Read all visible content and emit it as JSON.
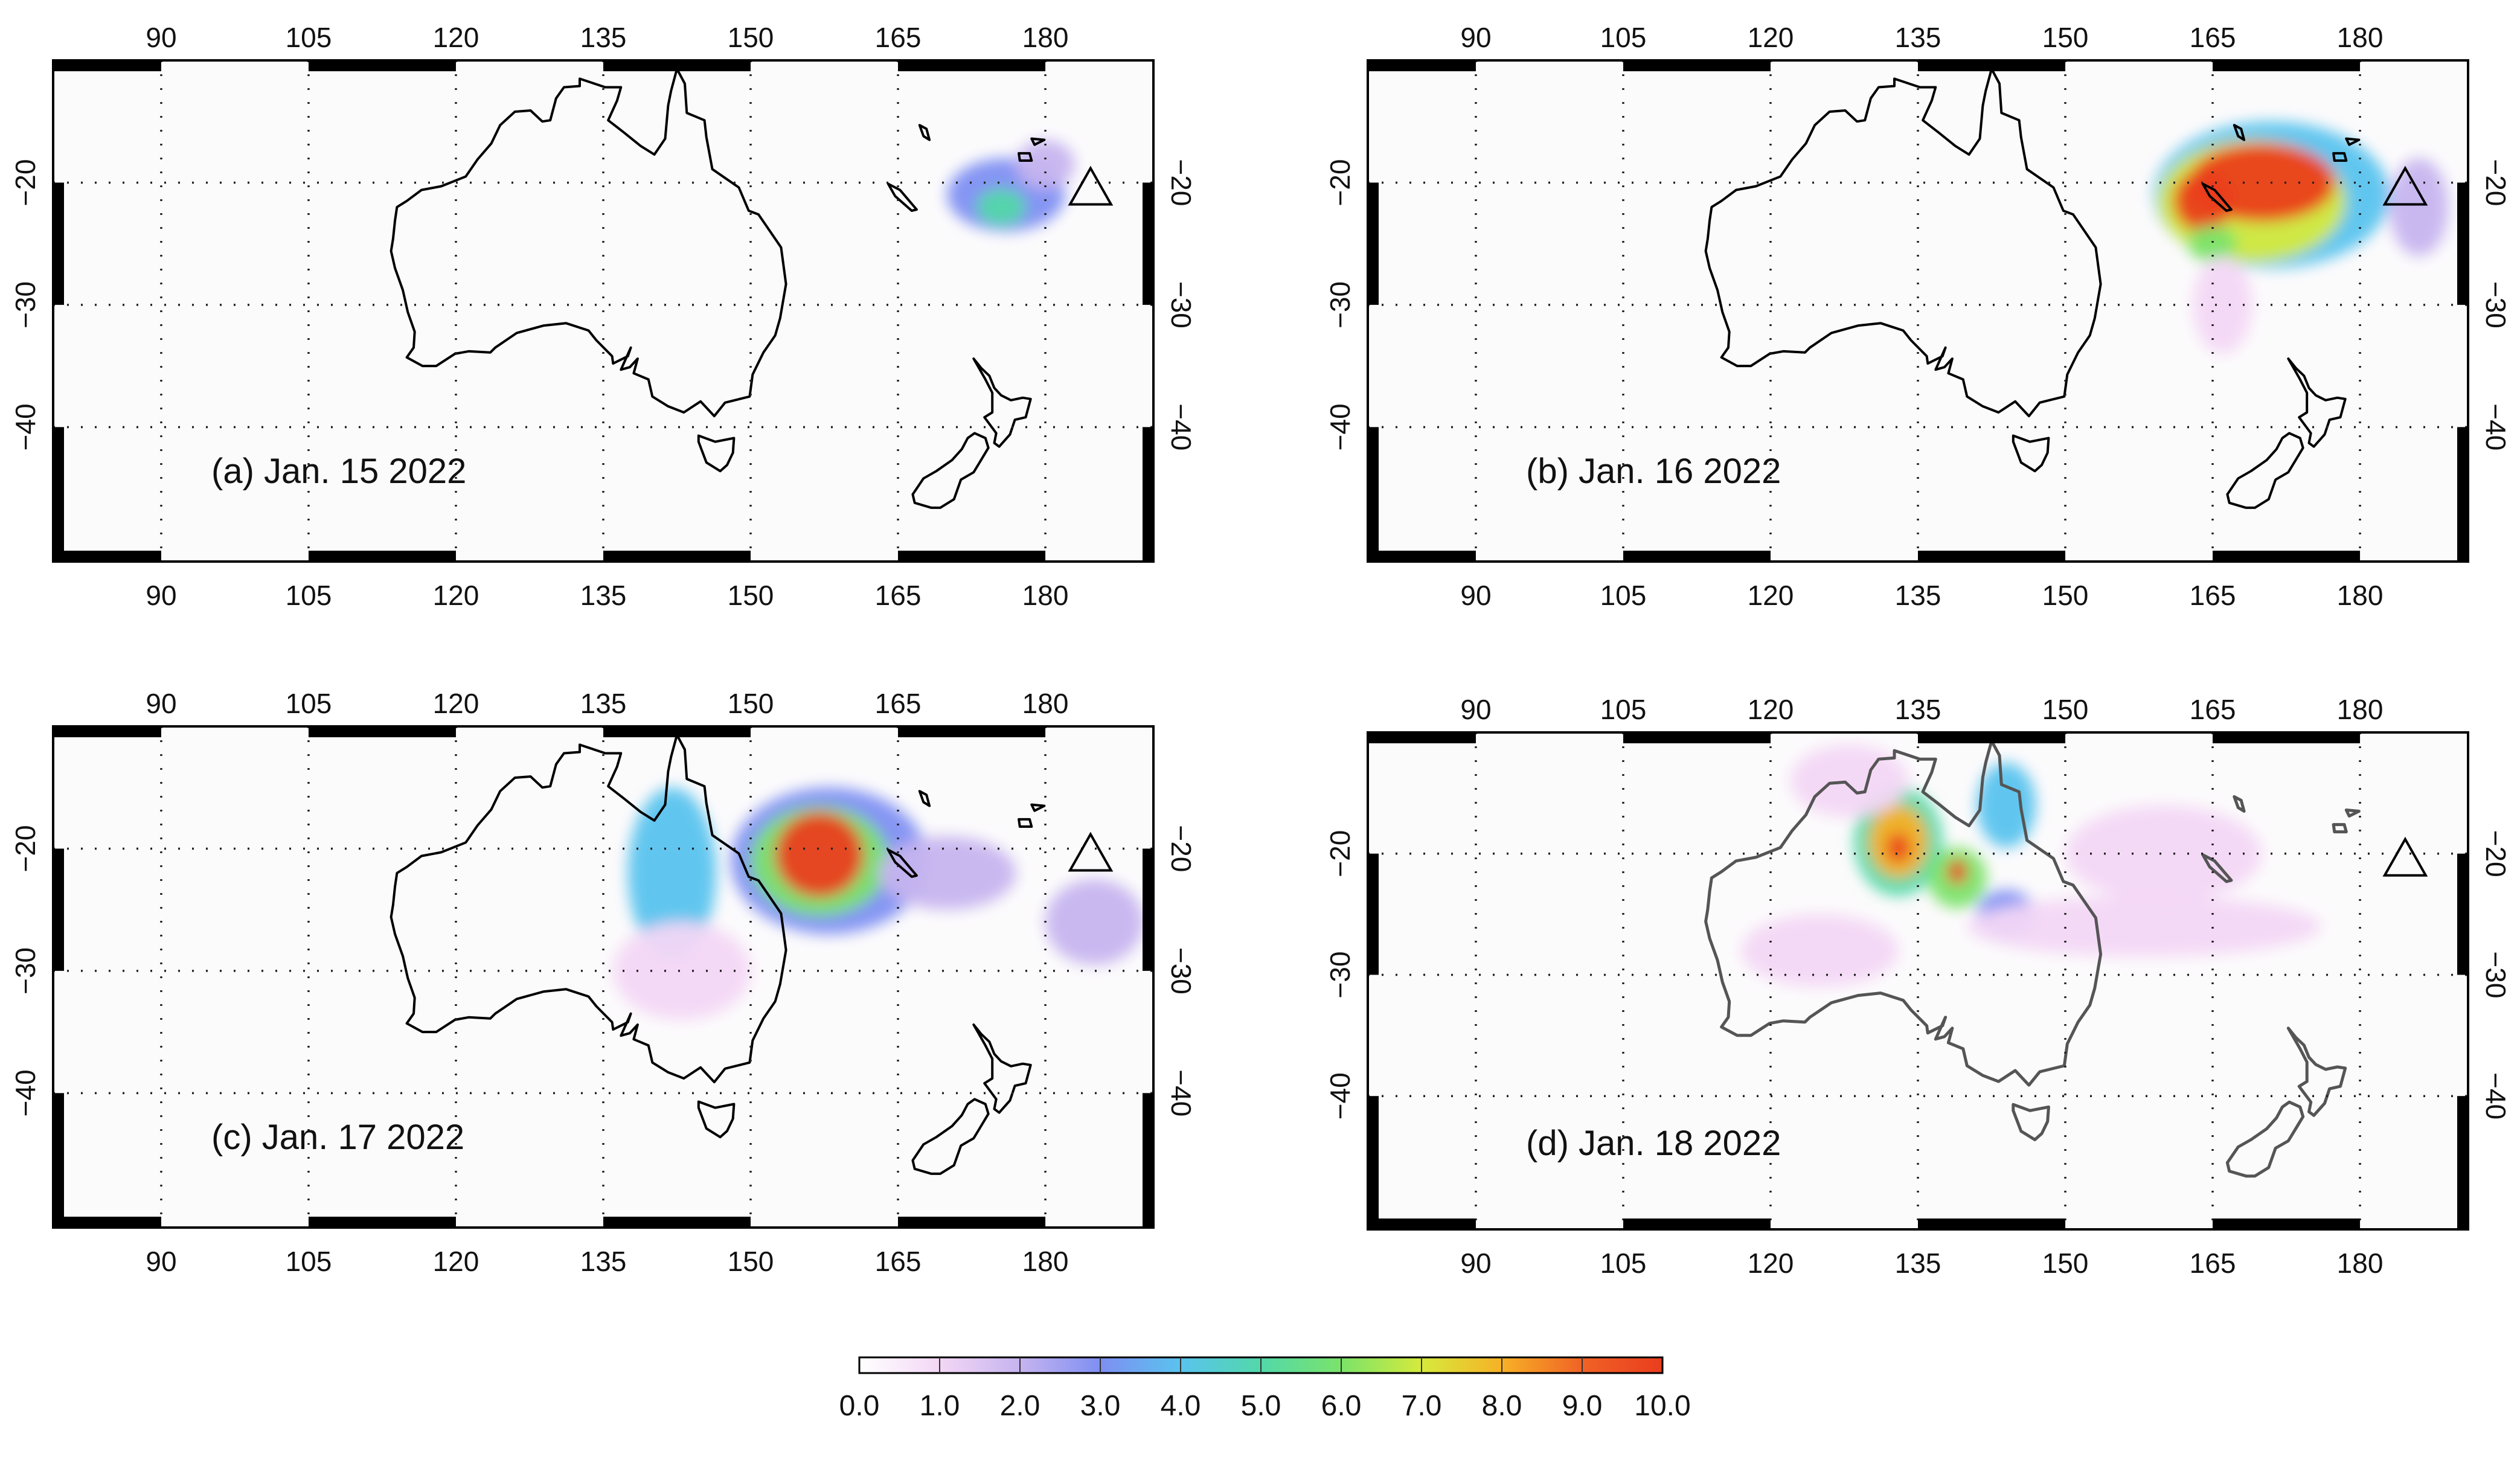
{
  "panels": [
    {
      "id": "a",
      "label": "(a) Jan. 15 2022"
    },
    {
      "id": "b",
      "label": "(b) Jan. 16 2022"
    },
    {
      "id": "c",
      "label": "(c) Jan. 17 2022"
    },
    {
      "id": "d",
      "label": "(d) Jan. 18 2022"
    }
  ],
  "axes": {
    "lon_ticks": [
      "90",
      "105",
      "120",
      "135",
      "150",
      "165",
      "180"
    ],
    "lon_values": [
      90,
      105,
      120,
      135,
      150,
      165,
      180
    ],
    "lat_ticks": [
      "−20",
      "−30",
      "−40"
    ],
    "lat_values": [
      -20,
      -30,
      -40
    ],
    "lon_range": [
      79,
      191
    ],
    "lat_range": [
      -51,
      -10
    ]
  },
  "marker": {
    "name": "Hunga Tonga volcano",
    "symbol": "triangle",
    "lon": 184.6,
    "lat": -20.5
  },
  "colorbar": {
    "ticks": [
      "0.0",
      "1.0",
      "2.0",
      "3.0",
      "4.0",
      "5.0",
      "6.0",
      "7.0",
      "8.0",
      "9.0",
      "10.0"
    ],
    "min": 0,
    "max": 10,
    "colors": [
      "#ffffff",
      "#f3d7f5",
      "#c6b4ef",
      "#7e8ff2",
      "#59c3ee",
      "#52d8a9",
      "#7be36a",
      "#d6ea3c",
      "#f7b126",
      "#f06226",
      "#ea3d1e"
    ]
  },
  "plumes": {
    "a": [
      {
        "lon": 176,
        "lat": -21,
        "rlon": 6,
        "rlat": 3,
        "value": 2.5
      },
      {
        "lon": 175.5,
        "lat": -22,
        "rlon": 2.5,
        "rlat": 1.5,
        "value": 4.5
      },
      {
        "lon": 180,
        "lat": -18.5,
        "rlon": 3,
        "rlat": 2,
        "value": 1.5
      }
    ],
    "b": [
      {
        "lon": 171,
        "lat": -21,
        "rlon": 12,
        "rlat": 6,
        "value": 4
      },
      {
        "lon": 169,
        "lat": -21.5,
        "rlon": 9.5,
        "rlat": 5,
        "value": 7
      },
      {
        "lon": 170,
        "lat": -20,
        "rlon": 7.5,
        "rlat": 3.2,
        "value": 10
      },
      {
        "lon": 164,
        "lat": -21.5,
        "rlon": 3,
        "rlat": 2.5,
        "value": 10
      },
      {
        "lon": 165,
        "lat": -25,
        "rlon": 2.5,
        "rlat": 1.5,
        "value": 6
      },
      {
        "lon": 186,
        "lat": -22,
        "rlon": 3,
        "rlat": 4,
        "value": 2
      },
      {
        "lon": 166,
        "lat": -30,
        "rlon": 3,
        "rlat": 4,
        "value": 0.8
      }
    ],
    "c": [
      {
        "lon": 142,
        "lat": -22,
        "rlon": 4.5,
        "rlat": 7,
        "value": 4
      },
      {
        "lon": 143,
        "lat": -30,
        "rlon": 7,
        "rlat": 4,
        "value": 0.8
      },
      {
        "lon": 158,
        "lat": -21,
        "rlon": 10,
        "rlat": 6,
        "value": 3
      },
      {
        "lon": 157,
        "lat": -21,
        "rlon": 7,
        "rlat": 4.5,
        "value": 6
      },
      {
        "lon": 157,
        "lat": -20.5,
        "rlon": 4.5,
        "rlat": 3.5,
        "value": 10
      },
      {
        "lon": 170,
        "lat": -22,
        "rlon": 7,
        "rlat": 3,
        "value": 1.5
      },
      {
        "lon": 185,
        "lat": -26,
        "rlon": 5,
        "rlat": 3.5,
        "value": 1.5
      }
    ],
    "d": [
      {
        "lon": 133,
        "lat": -19,
        "rlon": 4.5,
        "rlat": 4.5,
        "value": 4.5
      },
      {
        "lon": 133,
        "lat": -19,
        "rlon": 3,
        "rlat": 3,
        "value": 7.5
      },
      {
        "lon": 133,
        "lat": -19.5,
        "rlon": 1.2,
        "rlat": 1.2,
        "value": 10
      },
      {
        "lon": 139,
        "lat": -22,
        "rlon": 3,
        "rlat": 2.5,
        "value": 6
      },
      {
        "lon": 139,
        "lat": -21.5,
        "rlon": 1,
        "rlat": 1,
        "value": 10
      },
      {
        "lon": 144,
        "lat": -16,
        "rlon": 3,
        "rlat": 3.5,
        "value": 4
      },
      {
        "lon": 144,
        "lat": -25,
        "rlon": 3,
        "rlat": 2,
        "value": 3
      },
      {
        "lon": 125,
        "lat": -28,
        "rlon": 8,
        "rlat": 3,
        "value": 1
      },
      {
        "lon": 158,
        "lat": -26,
        "rlon": 18,
        "rlat": 2.5,
        "value": 1.2
      },
      {
        "lon": 160,
        "lat": -20,
        "rlon": 10,
        "rlat": 4,
        "value": 0.8
      },
      {
        "lon": 128,
        "lat": -14,
        "rlon": 6,
        "rlat": 3,
        "value": 0.8
      }
    ]
  }
}
